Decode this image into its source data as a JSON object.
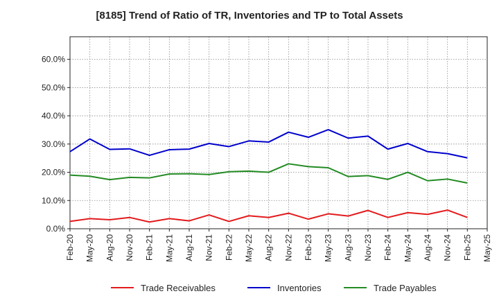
{
  "chart_data": {
    "type": "line",
    "title": "[8185]  Trend of Ratio of TR, Inventories and TP to Total Assets",
    "xlabel": "",
    "ylabel": "",
    "x_ticks": [
      "Feb-20",
      "May-20",
      "Aug-20",
      "Nov-20",
      "Feb-21",
      "May-21",
      "Aug-21",
      "Nov-21",
      "Feb-22",
      "May-22",
      "Aug-22",
      "Nov-22",
      "Feb-23",
      "May-23",
      "Aug-23",
      "Nov-23",
      "Feb-24",
      "May-24",
      "Aug-24",
      "Nov-24",
      "Feb-25",
      "May-25"
    ],
    "y_ticks": [
      "0.0%",
      "10.0%",
      "20.0%",
      "30.0%",
      "40.0%",
      "50.0%",
      "60.0%"
    ],
    "ylim": [
      0,
      68
    ],
    "grid": true,
    "legend_position": "bottom",
    "x": [
      "Feb-20",
      "May-20",
      "Aug-20",
      "Nov-20",
      "Feb-21",
      "May-21",
      "Aug-21",
      "Nov-21",
      "Feb-22",
      "May-22",
      "Aug-22",
      "Nov-22",
      "Feb-23",
      "May-23",
      "Aug-23",
      "Nov-23",
      "Feb-24",
      "May-24",
      "Aug-24",
      "Nov-24",
      "Feb-25"
    ],
    "series": [
      {
        "name": "Trade Receivables",
        "color": "#e31a1c",
        "values": [
          2.6,
          3.6,
          3.2,
          4.0,
          2.4,
          3.6,
          2.8,
          4.9,
          2.6,
          4.6,
          4.0,
          5.5,
          3.4,
          5.3,
          4.5,
          6.5,
          4.0,
          5.7,
          5.1,
          6.6,
          4.0
        ]
      },
      {
        "name": "Inventories",
        "color": "#0000cc",
        "values": [
          27.3,
          31.8,
          28.1,
          28.3,
          26.0,
          28.0,
          28.2,
          30.2,
          29.1,
          31.1,
          30.7,
          34.2,
          32.4,
          35.1,
          32.1,
          32.8,
          28.2,
          30.2,
          27.3,
          26.6,
          25.1
        ]
      },
      {
        "name": "Trade Payables",
        "color": "#228b22",
        "values": [
          19.0,
          18.6,
          17.4,
          18.2,
          18.0,
          19.4,
          19.5,
          19.2,
          20.2,
          20.4,
          20.0,
          23.0,
          22.0,
          21.6,
          18.5,
          18.8,
          17.5,
          20.0,
          17.0,
          17.6,
          16.2
        ]
      }
    ]
  }
}
